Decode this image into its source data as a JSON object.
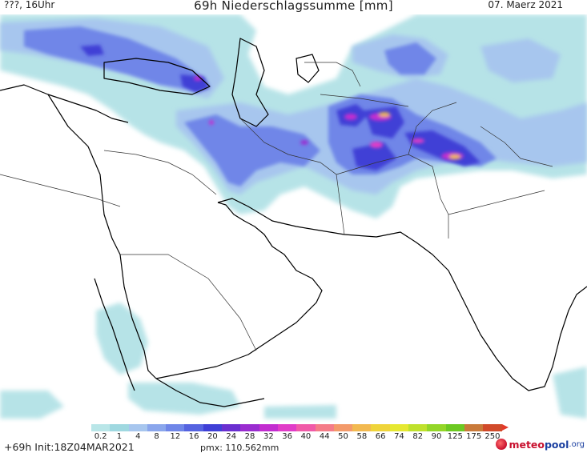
{
  "header": {
    "left": "???, 16Uhr",
    "title": "69h Niederschlagssumme [mm]",
    "date": "07. Maerz 2021"
  },
  "footer": {
    "left": "+69h Init:18Z04MAR2021",
    "pmx": "pmx: 110.562mm",
    "logo_a": "meteo",
    "logo_b": "pool",
    "logo_c": ".org"
  },
  "legend": {
    "ticks": [
      "0.2",
      "1",
      "4",
      "8",
      "12",
      "16",
      "20",
      "24",
      "28",
      "32",
      "36",
      "40",
      "44",
      "50",
      "58",
      "66",
      "74",
      "82",
      "90",
      "125",
      "175",
      "250"
    ],
    "colors": [
      "#b9e6e8",
      "#9fd8e0",
      "#a7c6ee",
      "#8aa6ec",
      "#6f86e8",
      "#5563e0",
      "#3f3fd6",
      "#6a2fd0",
      "#9a2dd0",
      "#c22dd0",
      "#e03cc8",
      "#f05aa8",
      "#f47c88",
      "#f39a6a",
      "#f2b950",
      "#efd43a",
      "#e6e831",
      "#bfe12c",
      "#93d628",
      "#6cc922",
      "#c97a3a",
      "#d14a2a"
    ],
    "arrow_color": "#e33a2a"
  },
  "map": {
    "land_outline_color": "#000000",
    "border_color": "#333333",
    "precip_colors": {
      "light": "#9fd8e0",
      "low": "#a7c6ee",
      "mid": "#6f86e8",
      "high": "#3f3fd6",
      "vhigh": "#c22dd0",
      "peak": "#f2b950"
    }
  }
}
